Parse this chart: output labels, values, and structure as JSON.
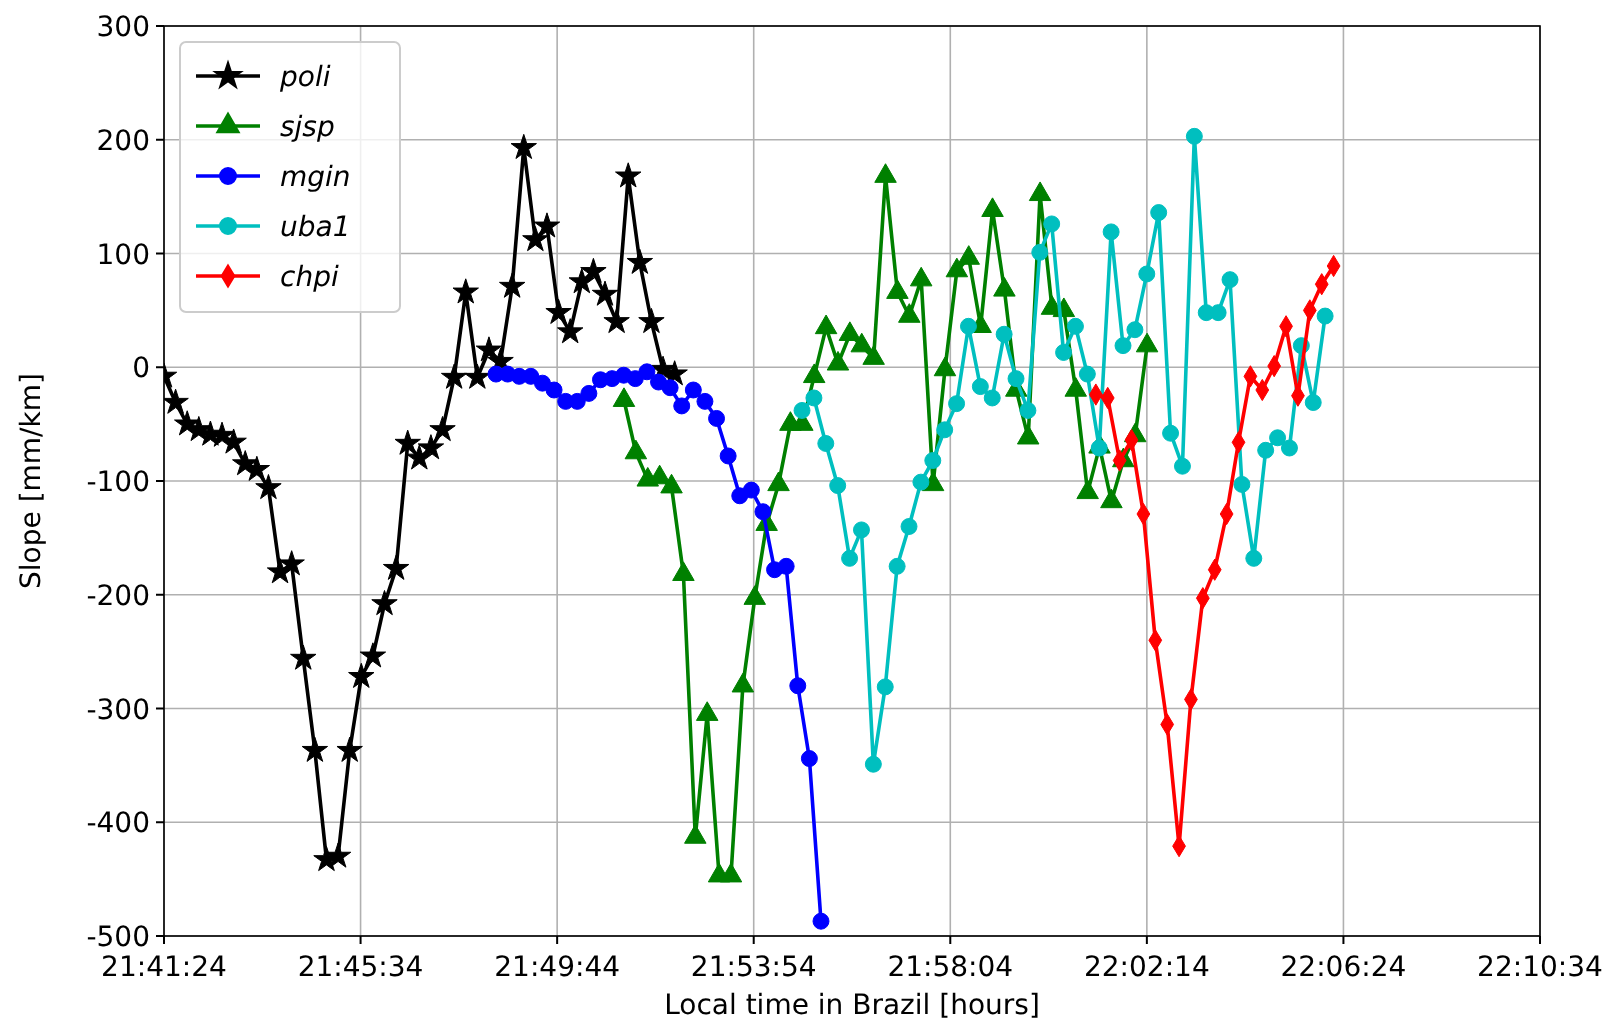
{
  "chart_data": {
    "type": "line",
    "xlabel": "Local time in Brazil [hours]",
    "ylabel": "Slope [mm/km]",
    "xlim": [
      21.69,
      22.176111
    ],
    "ylim": [
      -500,
      300
    ],
    "xticks": [
      {
        "value": 21.69,
        "label": "21:41:24"
      },
      {
        "value": 21.759444,
        "label": "21:45:34"
      },
      {
        "value": 21.828889,
        "label": "21:49:44"
      },
      {
        "value": 21.898333,
        "label": "21:53:54"
      },
      {
        "value": 21.967778,
        "label": "21:58:04"
      },
      {
        "value": 22.037222,
        "label": "22:02:14"
      },
      {
        "value": 22.106667,
        "label": "22:06:24"
      },
      {
        "value": 22.176111,
        "label": "22:10:34"
      }
    ],
    "yticks": [
      -500,
      -400,
      -300,
      -200,
      -100,
      0,
      100,
      200,
      300
    ],
    "grid": true,
    "legend": "top left",
    "line_style": "solid",
    "series": [
      {
        "name": "poli",
        "color": "#000000",
        "marker": "star",
        "x": [
          21.69,
          21.6941,
          21.6982,
          21.7023,
          21.7064,
          21.7105,
          21.7146,
          21.7187,
          21.7228,
          21.7269,
          21.731,
          21.7351,
          21.7392,
          21.7433,
          21.7474,
          21.7515,
          21.7556,
          21.7597,
          21.7638,
          21.7679,
          21.772,
          21.7761,
          21.7802,
          21.7843,
          21.7884,
          21.7925,
          21.7966,
          21.8007,
          21.8048,
          21.8089,
          21.813,
          21.8171,
          21.8212,
          21.8253,
          21.8294,
          21.8335,
          21.8376,
          21.8417,
          21.8458,
          21.8499,
          21.854,
          21.8581,
          21.8622,
          21.8663,
          21.8704
        ],
        "values": [
          -8,
          -31,
          -50,
          -55,
          -59,
          -60,
          -66,
          -85,
          -90,
          -106,
          -180,
          -173,
          -256,
          -337,
          -433,
          -430,
          -337,
          -272,
          -254,
          -208,
          -177,
          -67,
          -80,
          -71,
          -55,
          -9,
          66,
          -9,
          15,
          5,
          71,
          193,
          112,
          124,
          48,
          31,
          75,
          84,
          64,
          40,
          168,
          92,
          40,
          -2,
          -6
        ]
      },
      {
        "name": "sjsp",
        "color": "#008000",
        "marker": "triangle",
        "x": [
          21.8525,
          21.8567,
          21.8609,
          21.8651,
          21.8693,
          21.8735,
          21.8777,
          21.8819,
          21.8861,
          21.8903,
          21.8945,
          21.8987,
          21.9029,
          21.9071,
          21.9113,
          21.9155,
          21.9197,
          21.9239,
          21.9281,
          21.9323,
          21.9365,
          21.9407,
          21.9449,
          21.9491,
          21.9533,
          21.9575,
          21.9617,
          21.9659,
          21.9701,
          21.9743,
          21.9785,
          21.9827,
          21.9869,
          21.9911,
          21.9953,
          21.9995,
          22.0037,
          22.0079,
          22.0121,
          22.0163,
          22.0205,
          22.0247,
          22.0289,
          22.0331,
          22.0373
        ],
        "values": [
          -29,
          -75,
          -99,
          -97,
          -105,
          -182,
          -413,
          -305,
          -447,
          -447,
          -280,
          -203,
          -138,
          -103,
          -50,
          -50,
          -8,
          35,
          3,
          29,
          19,
          8,
          168,
          66,
          45,
          77,
          -103,
          -2,
          85,
          96,
          36,
          138,
          68,
          -20,
          -62,
          152,
          52,
          50,
          -20,
          -110,
          -70,
          -118,
          -82,
          -60,
          19
        ]
      },
      {
        "name": "mgin",
        "color": "#0000ff",
        "marker": "circle",
        "x": [
          21.8073,
          21.8114,
          21.8155,
          21.8196,
          21.8237,
          21.8278,
          21.8319,
          21.836,
          21.8401,
          21.8442,
          21.8483,
          21.8524,
          21.8565,
          21.8606,
          21.8647,
          21.8688,
          21.8729,
          21.877,
          21.8811,
          21.8852,
          21.8893,
          21.8934,
          21.8975,
          21.9016,
          21.9057,
          21.9098,
          21.9139,
          21.918,
          21.9221
        ],
        "values": [
          -6,
          -6,
          -8,
          -8,
          -14,
          -20,
          -30,
          -30,
          -23,
          -11,
          -10,
          -7,
          -10,
          -4,
          -13,
          -18,
          -34,
          -20,
          -30,
          -45,
          -78,
          -113,
          -108,
          -127,
          -178,
          -175,
          -280,
          -344,
          -487
        ]
      },
      {
        "name": "uba1",
        "color": "#00bfbf",
        "marker": "circle",
        "x": [
          21.9154,
          21.9196,
          21.9238,
          21.928,
          21.9322,
          21.9364,
          21.9406,
          21.9448,
          21.949,
          21.9532,
          21.9574,
          21.9616,
          21.9658,
          21.97,
          21.9742,
          21.9784,
          21.9826,
          21.9868,
          21.991,
          21.9952,
          21.9994,
          22.0036,
          22.0078,
          22.012,
          22.0162,
          22.0204,
          22.0246,
          22.0288,
          22.033,
          22.0372,
          22.0414,
          22.0456,
          22.0498,
          22.054,
          22.0582,
          22.0624,
          22.0666,
          22.0708,
          22.075,
          22.0792,
          22.0834,
          22.0876,
          22.0918,
          22.096,
          22.1002
        ],
        "values": [
          -38,
          -27,
          -67,
          -104,
          -168,
          -143,
          -349,
          -281,
          -175,
          -140,
          -101,
          -82,
          -55,
          -32,
          36,
          -17,
          -27,
          29,
          -10,
          -38,
          101,
          126,
          13,
          36,
          -6,
          -71,
          119,
          19,
          33,
          82,
          136,
          -58,
          -87,
          203,
          48,
          48,
          77,
          -103,
          -168,
          -73,
          -62,
          -71,
          19,
          -31,
          45
        ]
      },
      {
        "name": "chpi",
        "color": "#ff0000",
        "marker": "diamond",
        "x": [
          22.0192,
          22.0234,
          22.0276,
          22.0318,
          22.036,
          22.0402,
          22.0444,
          22.0486,
          22.0528,
          22.057,
          22.0612,
          22.0654,
          22.0696,
          22.0738,
          22.078,
          22.0822,
          22.0864,
          22.0906,
          22.0948,
          22.099,
          22.1032
        ],
        "values": [
          -24,
          -27,
          -82,
          -64,
          -129,
          -240,
          -314,
          -421,
          -292,
          -203,
          -178,
          -129,
          -66,
          -8,
          -20,
          1,
          36,
          -25,
          50,
          73,
          89
        ]
      }
    ]
  }
}
